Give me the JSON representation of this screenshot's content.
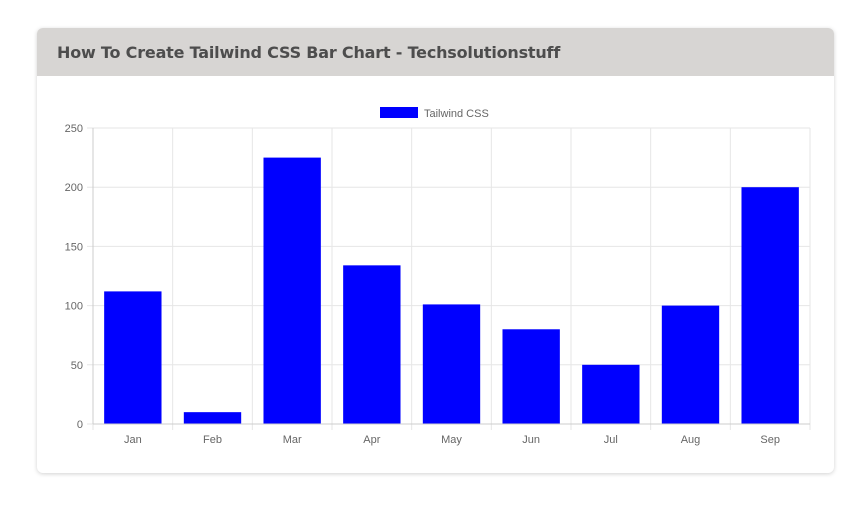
{
  "header": {
    "title": "How To Create Tailwind CSS Bar Chart - Techsolutionstuff"
  },
  "chart_data": {
    "type": "bar",
    "categories": [
      "Jan",
      "Feb",
      "Mar",
      "Apr",
      "May",
      "Jun",
      "Jul",
      "Aug",
      "Sep"
    ],
    "series": [
      {
        "name": "Tailwind CSS",
        "values": [
          112,
          10,
          225,
          134,
          101,
          80,
          50,
          100,
          200
        ],
        "color": "#0000ff"
      }
    ],
    "title": "",
    "xlabel": "",
    "ylabel": "",
    "ylim": [
      0,
      250
    ],
    "yticks": [
      0,
      50,
      100,
      150,
      200,
      250
    ],
    "grid": true,
    "legend": "top-center",
    "colors": {
      "grid": "#e6e6e6",
      "axis": "#cccccc",
      "tick_text": "#666666"
    }
  }
}
